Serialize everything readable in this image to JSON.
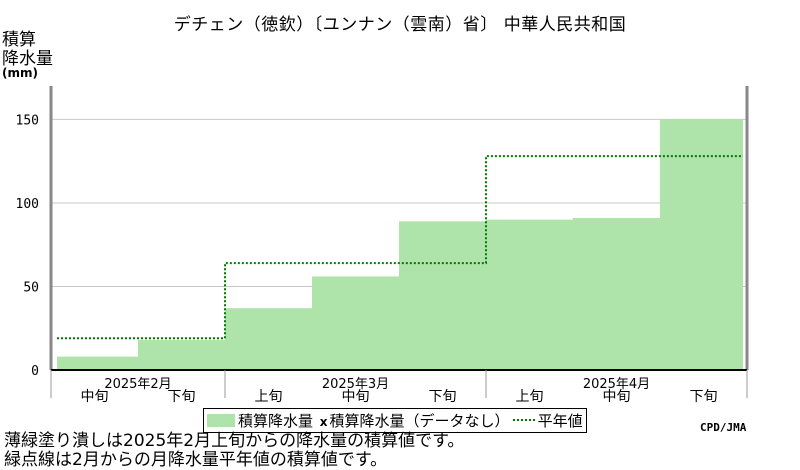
{
  "title": "デチェン（徳欽）〔ユンナン（雲南）省〕 中華人民共和国",
  "ylabel_line1": "積算",
  "ylabel_line2": "降水量",
  "yunit": "(mm)",
  "credit": "CPD/JMA",
  "notes": [
    "薄緑塗り潰しは2025年2月上旬からの降水量の積算値です。",
    "緑点線は2月からの月降水量平年値の積算値です。"
  ],
  "legend": {
    "bar_label": "積算降水量",
    "missing_mark": "x",
    "missing_label": "積算降水量（データなし）",
    "normal_label": "平年値"
  },
  "colors": {
    "bar": "#aee3aa",
    "normal_line": "#007a00",
    "grid": "#c8c8c8"
  },
  "chart_data": {
    "type": "area",
    "ylabel": "積算降水量 (mm)",
    "ylim": [
      0,
      170
    ],
    "yticks": [
      0,
      50,
      100,
      150
    ],
    "grid": true,
    "month_labels": [
      "2025年2月",
      "2025年3月",
      "2025年4月"
    ],
    "dekads": [
      "上旬",
      "中旬",
      "下旬",
      "上旬",
      "中旬",
      "下旬",
      "上旬",
      "中旬",
      "下旬"
    ],
    "dekad_label_row": [
      "中旬",
      "下旬",
      "上旬",
      "中旬",
      "下旬",
      "上旬",
      "中旬",
      "下旬"
    ],
    "series": [
      {
        "name": "積算降水量",
        "values": [
          8,
          18,
          37,
          56,
          89,
          90,
          91,
          150
        ]
      },
      {
        "name": "平年値",
        "values": [
          19,
          19,
          19,
          64,
          64,
          64,
          128,
          128,
          128
        ]
      }
    ]
  }
}
